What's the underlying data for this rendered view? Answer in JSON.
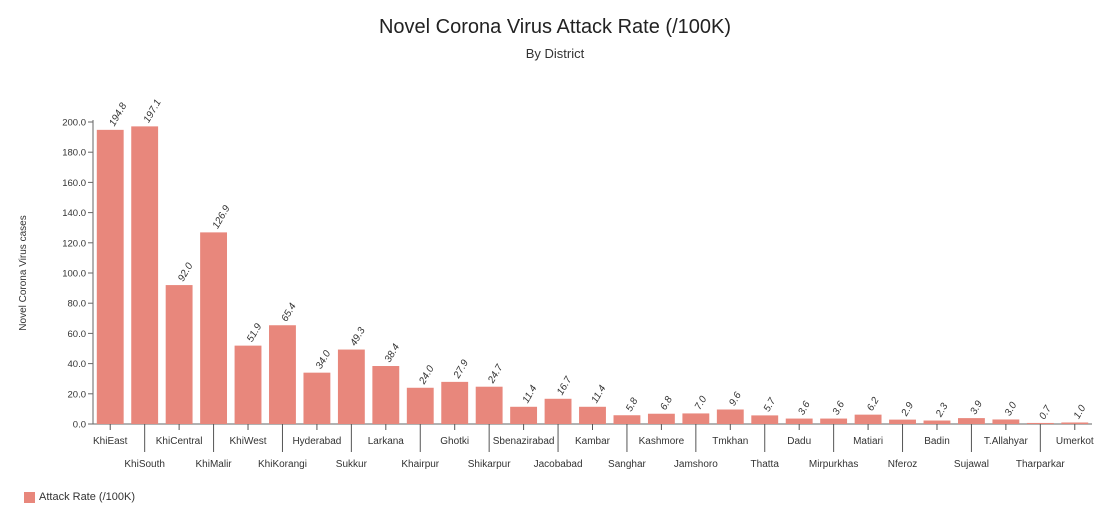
{
  "chart_data": {
    "type": "bar",
    "title": "Novel Corona Virus Attack Rate (/100K)",
    "subtitle": "By District",
    "ylabel": "Novel Corona Virus cases",
    "xlabel": "",
    "ylim": [
      0,
      200
    ],
    "yticks": [
      "0.0",
      "20.0",
      "40.0",
      "60.0",
      "80.0",
      "100.0",
      "120.0",
      "140.0",
      "160.0",
      "180.0",
      "200.0"
    ],
    "categories": [
      "KhiEast",
      "KhiSouth",
      "KhiCentral",
      "KhiMalir",
      "KhiWest",
      "KhiKorangi",
      "Hyderabad",
      "Sukkur",
      "Larkana",
      "Khairpur",
      "Ghotki",
      "Shikarpur",
      "Sbenazirabad",
      "Jacobabad",
      "Kambar",
      "Sanghar",
      "Kashmore",
      "Jamshoro",
      "Tmkhan",
      "Thatta",
      "Dadu",
      "Mirpurkhas",
      "Matiari",
      "Nferoz",
      "Badin",
      "Sujawal",
      "T.Allahyar",
      "Tharparkar",
      "Umerkot"
    ],
    "values": [
      194.8,
      197.1,
      92.0,
      126.9,
      51.9,
      65.4,
      34.0,
      49.3,
      38.4,
      24.0,
      27.9,
      24.7,
      11.4,
      16.7,
      11.4,
      5.8,
      6.8,
      7.0,
      9.6,
      5.7,
      3.6,
      3.6,
      6.2,
      2.9,
      2.3,
      3.9,
      3.0,
      0.7,
      1.0
    ],
    "value_labels": [
      "194.8",
      "197.1",
      "92.0",
      "126.9",
      "51.9",
      "65.4",
      "34.0",
      "49.3",
      "38.4",
      "24.0",
      "27.9",
      "24.7",
      "11.4",
      "16.7",
      "11.4",
      "5.8",
      "6.8",
      "7.0",
      "9.6",
      "5.7",
      "3.6",
      "3.6",
      "6.2",
      "2.9",
      "2.3",
      "3.9",
      "3.0",
      "0.7",
      "1.0"
    ],
    "series": [
      {
        "name": "Attack Rate (/100K)"
      }
    ],
    "legend_position": "bottom-left",
    "grid": false,
    "bar_color": "#e8877c"
  }
}
